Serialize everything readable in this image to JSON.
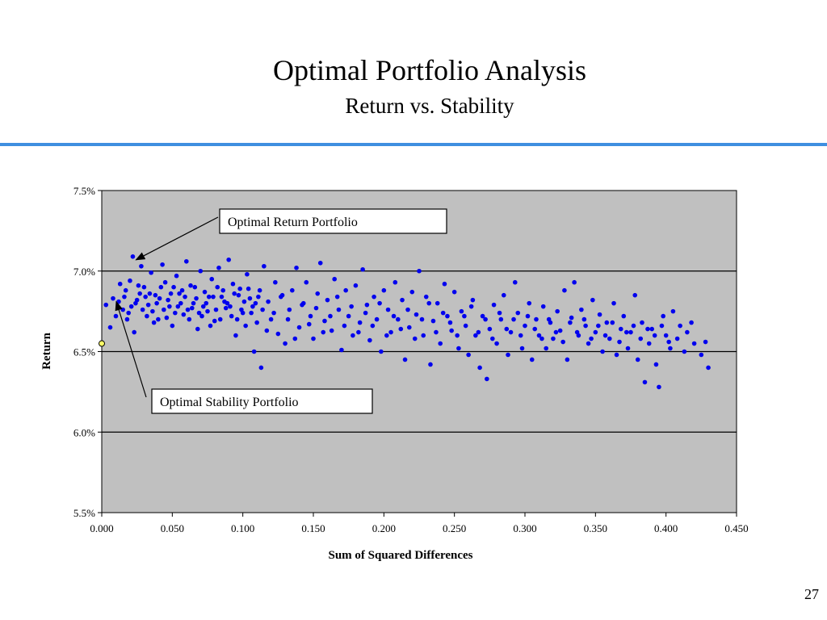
{
  "slide": {
    "title": "Optimal Portfolio Analysis",
    "subtitle": "Return vs. Stability",
    "page_number": "27",
    "accent_color": "#3f8fe0"
  },
  "chart_data": {
    "type": "scatter",
    "xlabel": "Sum of Squared Differences",
    "ylabel": "Return",
    "xlim": [
      0.0,
      0.45
    ],
    "ylim": [
      5.5,
      7.5
    ],
    "x_ticks": [
      "0.000",
      "0.050",
      "0.100",
      "0.150",
      "0.200",
      "0.250",
      "0.300",
      "0.350",
      "0.400",
      "0.450"
    ],
    "y_ticks": [
      "5.5%",
      "6.0%",
      "6.5%",
      "7.0%",
      "7.5%"
    ],
    "grid": "horizontal",
    "plot_background": "#c0c0c0",
    "point_color": "#0000ee",
    "highlight_color": "#ffff66",
    "annotations": [
      {
        "text": "Optimal Return Portfolio",
        "target": [
          0.022,
          7.09
        ]
      },
      {
        "text": "Optimal Stability Portfolio",
        "target": [
          0.008,
          6.83
        ]
      }
    ],
    "highlight_point": {
      "x": 0.0,
      "y": 6.55
    },
    "points": [
      [
        0.022,
        7.09
      ],
      [
        0.008,
        6.83
      ],
      [
        0.003,
        6.79
      ],
      [
        0.012,
        6.81
      ],
      [
        0.015,
        6.76
      ],
      [
        0.017,
        6.88
      ],
      [
        0.02,
        6.94
      ],
      [
        0.025,
        6.82
      ],
      [
        0.028,
        7.03
      ],
      [
        0.03,
        6.9
      ],
      [
        0.032,
        6.72
      ],
      [
        0.035,
        6.99
      ],
      [
        0.038,
        6.85
      ],
      [
        0.04,
        6.7
      ],
      [
        0.043,
        7.04
      ],
      [
        0.045,
        6.93
      ],
      [
        0.048,
        6.78
      ],
      [
        0.05,
        6.66
      ],
      [
        0.053,
        6.97
      ],
      [
        0.055,
        6.86
      ],
      [
        0.058,
        6.73
      ],
      [
        0.06,
        7.06
      ],
      [
        0.063,
        6.91
      ],
      [
        0.065,
        6.8
      ],
      [
        0.068,
        6.64
      ],
      [
        0.07,
        7.0
      ],
      [
        0.073,
        6.87
      ],
      [
        0.075,
        6.75
      ],
      [
        0.078,
        6.95
      ],
      [
        0.08,
        6.69
      ],
      [
        0.083,
        7.02
      ],
      [
        0.085,
        6.84
      ],
      [
        0.088,
        6.77
      ],
      [
        0.09,
        7.07
      ],
      [
        0.093,
        6.92
      ],
      [
        0.095,
        6.6
      ],
      [
        0.098,
        6.89
      ],
      [
        0.1,
        6.74
      ],
      [
        0.103,
        6.98
      ],
      [
        0.105,
        6.83
      ],
      [
        0.108,
        6.5
      ],
      [
        0.11,
        6.68
      ],
      [
        0.113,
        6.4
      ],
      [
        0.115,
        7.03
      ],
      [
        0.118,
        6.81
      ],
      [
        0.12,
        6.7
      ],
      [
        0.123,
        6.93
      ],
      [
        0.125,
        6.61
      ],
      [
        0.128,
        6.85
      ],
      [
        0.13,
        6.55
      ],
      [
        0.133,
        6.76
      ],
      [
        0.135,
        6.88
      ],
      [
        0.138,
        7.02
      ],
      [
        0.14,
        6.65
      ],
      [
        0.143,
        6.8
      ],
      [
        0.145,
        6.93
      ],
      [
        0.148,
        6.72
      ],
      [
        0.15,
        6.58
      ],
      [
        0.153,
        6.86
      ],
      [
        0.155,
        7.05
      ],
      [
        0.158,
        6.69
      ],
      [
        0.16,
        6.82
      ],
      [
        0.163,
        6.63
      ],
      [
        0.165,
        6.95
      ],
      [
        0.168,
        6.76
      ],
      [
        0.17,
        6.51
      ],
      [
        0.173,
        6.88
      ],
      [
        0.175,
        6.72
      ],
      [
        0.178,
        6.6
      ],
      [
        0.18,
        6.91
      ],
      [
        0.183,
        6.68
      ],
      [
        0.185,
        7.01
      ],
      [
        0.188,
        6.79
      ],
      [
        0.19,
        6.57
      ],
      [
        0.193,
        6.84
      ],
      [
        0.195,
        6.7
      ],
      [
        0.198,
        6.5
      ],
      [
        0.2,
        6.88
      ],
      [
        0.203,
        6.76
      ],
      [
        0.205,
        6.62
      ],
      [
        0.208,
        6.93
      ],
      [
        0.21,
        6.7
      ],
      [
        0.213,
        6.82
      ],
      [
        0.215,
        6.45
      ],
      [
        0.218,
        6.65
      ],
      [
        0.22,
        6.87
      ],
      [
        0.223,
        6.73
      ],
      [
        0.225,
        7.0
      ],
      [
        0.228,
        6.6
      ],
      [
        0.23,
        6.84
      ],
      [
        0.233,
        6.42
      ],
      [
        0.235,
        6.69
      ],
      [
        0.238,
        6.8
      ],
      [
        0.24,
        6.55
      ],
      [
        0.243,
        6.92
      ],
      [
        0.245,
        6.72
      ],
      [
        0.248,
        6.63
      ],
      [
        0.25,
        6.87
      ],
      [
        0.253,
        6.52
      ],
      [
        0.255,
        6.75
      ],
      [
        0.258,
        6.66
      ],
      [
        0.26,
        6.48
      ],
      [
        0.263,
        6.82
      ],
      [
        0.265,
        6.6
      ],
      [
        0.268,
        6.4
      ],
      [
        0.27,
        6.72
      ],
      [
        0.273,
        6.33
      ],
      [
        0.275,
        6.64
      ],
      [
        0.278,
        6.79
      ],
      [
        0.28,
        6.55
      ],
      [
        0.283,
        6.7
      ],
      [
        0.285,
        6.85
      ],
      [
        0.288,
        6.48
      ],
      [
        0.29,
        6.62
      ],
      [
        0.293,
        6.93
      ],
      [
        0.295,
        6.74
      ],
      [
        0.298,
        6.52
      ],
      [
        0.3,
        6.66
      ],
      [
        0.303,
        6.8
      ],
      [
        0.305,
        6.45
      ],
      [
        0.308,
        6.7
      ],
      [
        0.31,
        6.6
      ],
      [
        0.313,
        6.78
      ],
      [
        0.315,
        6.52
      ],
      [
        0.318,
        6.68
      ],
      [
        0.32,
        6.58
      ],
      [
        0.323,
        6.75
      ],
      [
        0.325,
        6.63
      ],
      [
        0.328,
        6.88
      ],
      [
        0.33,
        6.45
      ],
      [
        0.333,
        6.71
      ],
      [
        0.335,
        6.93
      ],
      [
        0.338,
        6.6
      ],
      [
        0.34,
        6.76
      ],
      [
        0.343,
        6.66
      ],
      [
        0.345,
        6.55
      ],
      [
        0.348,
        6.82
      ],
      [
        0.35,
        6.62
      ],
      [
        0.353,
        6.73
      ],
      [
        0.355,
        6.5
      ],
      [
        0.358,
        6.68
      ],
      [
        0.36,
        6.58
      ],
      [
        0.363,
        6.8
      ],
      [
        0.365,
        6.48
      ],
      [
        0.368,
        6.64
      ],
      [
        0.37,
        6.72
      ],
      [
        0.373,
        6.52
      ],
      [
        0.375,
        6.62
      ],
      [
        0.378,
        6.85
      ],
      [
        0.38,
        6.45
      ],
      [
        0.383,
        6.68
      ],
      [
        0.385,
        6.31
      ],
      [
        0.388,
        6.55
      ],
      [
        0.39,
        6.64
      ],
      [
        0.393,
        6.42
      ],
      [
        0.395,
        6.28
      ],
      [
        0.398,
        6.72
      ],
      [
        0.4,
        6.6
      ],
      [
        0.403,
        6.52
      ],
      [
        0.405,
        6.75
      ],
      [
        0.408,
        6.58
      ],
      [
        0.41,
        6.66
      ],
      [
        0.413,
        6.5
      ],
      [
        0.415,
        6.62
      ],
      [
        0.418,
        6.68
      ],
      [
        0.42,
        6.55
      ],
      [
        0.425,
        6.48
      ],
      [
        0.428,
        6.56
      ],
      [
        0.43,
        6.4
      ],
      [
        0.006,
        6.65
      ],
      [
        0.01,
        6.72
      ],
      [
        0.013,
        6.92
      ],
      [
        0.018,
        6.7
      ],
      [
        0.023,
        6.62
      ],
      [
        0.027,
        6.86
      ],
      [
        0.033,
        6.79
      ],
      [
        0.037,
        6.68
      ],
      [
        0.042,
        6.9
      ],
      [
        0.047,
        6.82
      ],
      [
        0.052,
        6.74
      ],
      [
        0.057,
        6.88
      ],
      [
        0.062,
        6.7
      ],
      [
        0.067,
        6.83
      ],
      [
        0.072,
        6.78
      ],
      [
        0.077,
        6.66
      ],
      [
        0.082,
        6.9
      ],
      [
        0.087,
        6.81
      ],
      [
        0.092,
        6.72
      ],
      [
        0.097,
        6.85
      ],
      [
        0.102,
        6.66
      ],
      [
        0.107,
        6.78
      ],
      [
        0.112,
        6.88
      ],
      [
        0.117,
        6.63
      ],
      [
        0.122,
        6.74
      ],
      [
        0.127,
        6.84
      ],
      [
        0.132,
        6.7
      ],
      [
        0.137,
        6.58
      ],
      [
        0.142,
        6.79
      ],
      [
        0.147,
        6.67
      ],
      [
        0.152,
        6.77
      ],
      [
        0.157,
        6.62
      ],
      [
        0.162,
        6.72
      ],
      [
        0.167,
        6.84
      ],
      [
        0.172,
        6.66
      ],
      [
        0.177,
        6.78
      ],
      [
        0.182,
        6.62
      ],
      [
        0.187,
        6.74
      ],
      [
        0.192,
        6.66
      ],
      [
        0.197,
        6.8
      ],
      [
        0.202,
        6.6
      ],
      [
        0.207,
        6.72
      ],
      [
        0.212,
        6.64
      ],
      [
        0.217,
        6.76
      ],
      [
        0.222,
        6.58
      ],
      [
        0.227,
        6.7
      ],
      [
        0.232,
        6.8
      ],
      [
        0.237,
        6.62
      ],
      [
        0.242,
        6.74
      ],
      [
        0.247,
        6.68
      ],
      [
        0.252,
        6.6
      ],
      [
        0.257,
        6.72
      ],
      [
        0.262,
        6.78
      ],
      [
        0.267,
        6.62
      ],
      [
        0.272,
        6.7
      ],
      [
        0.277,
        6.58
      ],
      [
        0.282,
        6.74
      ],
      [
        0.287,
        6.64
      ],
      [
        0.292,
        6.7
      ],
      [
        0.297,
        6.6
      ],
      [
        0.302,
        6.72
      ],
      [
        0.307,
        6.64
      ],
      [
        0.312,
        6.58
      ],
      [
        0.317,
        6.7
      ],
      [
        0.322,
        6.62
      ],
      [
        0.327,
        6.56
      ],
      [
        0.332,
        6.68
      ],
      [
        0.337,
        6.62
      ],
      [
        0.342,
        6.7
      ],
      [
        0.347,
        6.58
      ],
      [
        0.352,
        6.66
      ],
      [
        0.357,
        6.6
      ],
      [
        0.362,
        6.68
      ],
      [
        0.367,
        6.56
      ],
      [
        0.372,
        6.62
      ],
      [
        0.377,
        6.66
      ],
      [
        0.382,
        6.58
      ],
      [
        0.387,
        6.64
      ],
      [
        0.392,
        6.6
      ],
      [
        0.397,
        6.66
      ],
      [
        0.402,
        6.56
      ],
      [
        0.016,
        6.84
      ],
      [
        0.021,
        6.78
      ],
      [
        0.026,
        6.91
      ],
      [
        0.031,
        6.84
      ],
      [
        0.036,
        6.75
      ],
      [
        0.041,
        6.83
      ],
      [
        0.046,
        6.71
      ],
      [
        0.051,
        6.9
      ],
      [
        0.056,
        6.8
      ],
      [
        0.061,
        6.76
      ],
      [
        0.066,
        6.9
      ],
      [
        0.071,
        6.72
      ],
      [
        0.076,
        6.84
      ],
      [
        0.081,
        6.76
      ],
      [
        0.086,
        6.88
      ],
      [
        0.091,
        6.78
      ],
      [
        0.096,
        6.7
      ],
      [
        0.101,
        6.81
      ],
      [
        0.106,
        6.74
      ],
      [
        0.111,
        6.84
      ],
      [
        0.019,
        6.74
      ],
      [
        0.024,
        6.8
      ],
      [
        0.029,
        6.76
      ],
      [
        0.034,
        6.86
      ],
      [
        0.039,
        6.8
      ],
      [
        0.044,
        6.76
      ],
      [
        0.049,
        6.86
      ],
      [
        0.054,
        6.78
      ],
      [
        0.059,
        6.84
      ],
      [
        0.064,
        6.77
      ],
      [
        0.069,
        6.74
      ],
      [
        0.074,
        6.8
      ],
      [
        0.079,
        6.84
      ],
      [
        0.084,
        6.7
      ],
      [
        0.089,
        6.8
      ],
      [
        0.094,
        6.86
      ],
      [
        0.099,
        6.76
      ],
      [
        0.104,
        6.89
      ],
      [
        0.109,
        6.8
      ],
      [
        0.114,
        6.76
      ]
    ]
  }
}
